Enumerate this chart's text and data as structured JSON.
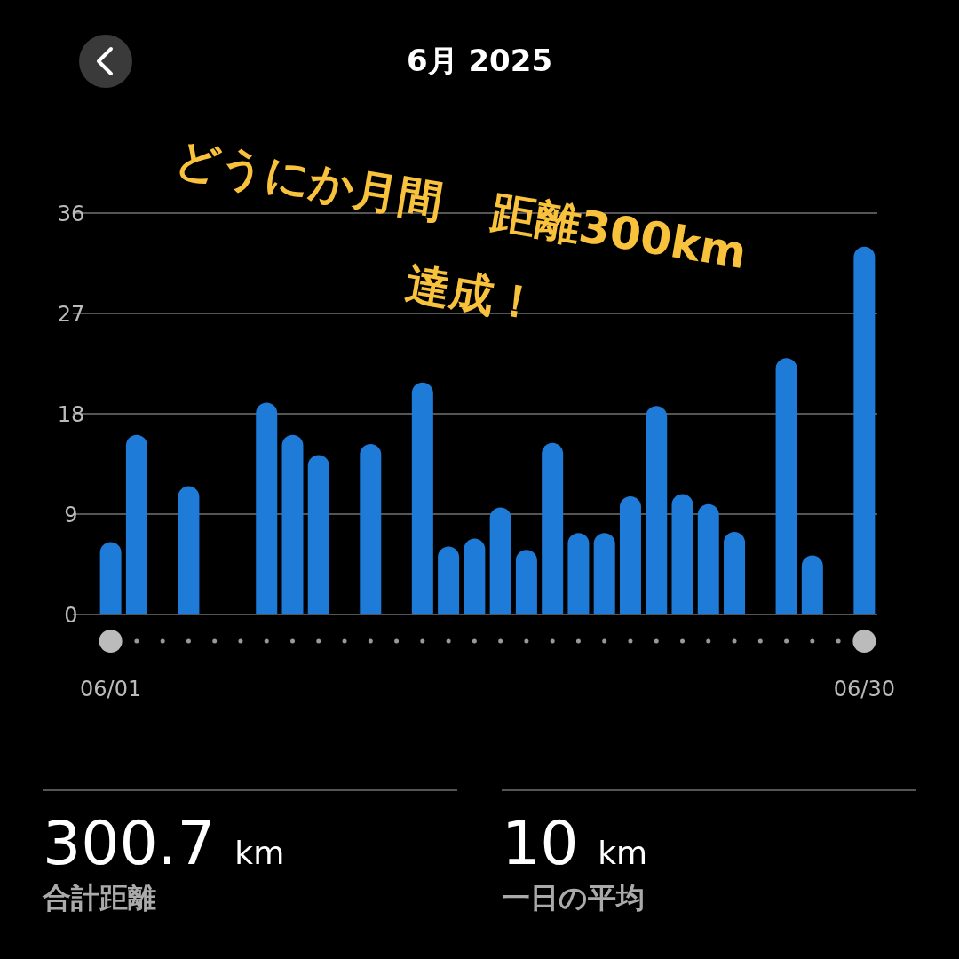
{
  "chart_data": {
    "type": "bar",
    "title": "6月 2025",
    "categories": [
      "06/01",
      null,
      null,
      null,
      null,
      null,
      null,
      null,
      null,
      null,
      null,
      null,
      null,
      null,
      null,
      null,
      null,
      null,
      null,
      null,
      null,
      null,
      null,
      null,
      null,
      null,
      null,
      null,
      null,
      "06/30"
    ],
    "values": [
      6.5,
      16.1,
      0,
      11.5,
      0,
      0,
      19.0,
      16.1,
      14.3,
      0,
      15.3,
      0,
      20.8,
      6.1,
      6.8,
      9.6,
      5.8,
      15.4,
      7.3,
      7.3,
      10.6,
      18.7,
      10.8,
      9.9,
      7.4,
      0,
      23.0,
      5.3,
      0,
      33.0
    ],
    "color": "#1f7bd8",
    "ylim": [
      0,
      36
    ],
    "yticks": [
      0,
      9,
      18,
      27,
      36
    ],
    "grid": "y",
    "annotations": [
      "どうにか月間 距離300km",
      "達成！",
      "300.7 km",
      "合計距離",
      "10 km",
      "一日の平均"
    ]
  }
}
